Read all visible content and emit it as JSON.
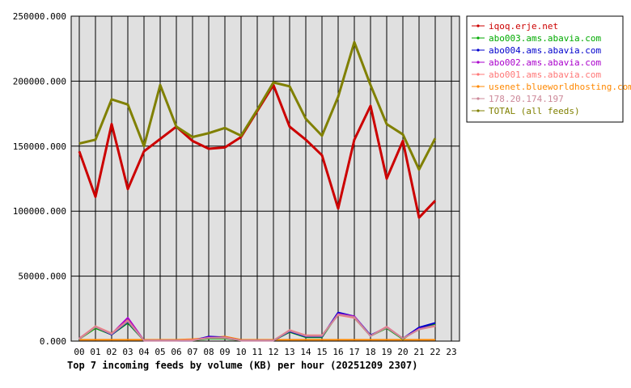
{
  "chart_data": {
    "type": "line",
    "title": "Top 7 incoming feeds by volume (KB) per hour (20251209 2307)",
    "xlabel": "",
    "ylabel": "",
    "ylim": [
      0,
      250000
    ],
    "grid": true,
    "legend_position": "right",
    "y_ticks": [
      "0.000",
      "50000.000",
      "100000.000",
      "150000.000",
      "200000.000",
      "250000.000"
    ],
    "x": [
      "00",
      "01",
      "02",
      "03",
      "04",
      "05",
      "06",
      "07",
      "08",
      "09",
      "10",
      "11",
      "12",
      "13",
      "14",
      "15",
      "16",
      "17",
      "18",
      "19",
      "20",
      "21",
      "22",
      "23"
    ],
    "series": [
      {
        "name": "iqoq.erje.net",
        "color": "#cc0000",
        "values": [
          146000,
          111000,
          167000,
          117000,
          146000,
          null,
          165000,
          154000,
          148000,
          149000,
          157000,
          null,
          197000,
          165000,
          155000,
          143000,
          102000,
          155000,
          181000,
          125000,
          154000,
          95000,
          108000,
          null
        ]
      },
      {
        "name": "abo003.ams.abavia.com",
        "color": "#00aa00",
        "values": [
          1500,
          10000,
          5000,
          14000,
          500,
          500,
          500,
          500,
          2000,
          2000,
          500,
          500,
          500,
          7000,
          3000,
          3000,
          21000,
          18000,
          4000,
          10000,
          1500,
          10000,
          13000,
          null
        ]
      },
      {
        "name": "abo004.ams.abavia.com",
        "color": "#0000cc",
        "values": [
          2000,
          11000,
          5000,
          15000,
          500,
          500,
          500,
          500,
          3500,
          3000,
          500,
          500,
          500,
          7500,
          3500,
          3500,
          22000,
          19000,
          4500,
          10500,
          2000,
          10500,
          14000,
          null
        ]
      },
      {
        "name": "abo002.ams.abavia.com",
        "color": "#aa00cc",
        "values": [
          2000,
          11000,
          5500,
          18000,
          500,
          500,
          500,
          500,
          3000,
          2500,
          500,
          500,
          500,
          8000,
          4000,
          4000,
          21000,
          19000,
          4000,
          11000,
          2000,
          9500,
          12000,
          null
        ]
      },
      {
        "name": "abo001.ams.abavia.com",
        "color": "#ff7777",
        "values": [
          2000,
          11500,
          6000,
          16000,
          500,
          500,
          500,
          1000,
          2500,
          3000,
          500,
          500,
          500,
          8500,
          4500,
          4500,
          20000,
          18000,
          4000,
          11000,
          2000,
          9000,
          11500,
          null
        ]
      },
      {
        "name": "usenet.blueworldhosting.com",
        "color": "#ff8800",
        "values": [
          1000,
          1000,
          1000,
          1000,
          1000,
          1000,
          1000,
          1500,
          2500,
          3500,
          1000,
          1000,
          1000,
          1000,
          1000,
          1000,
          1000,
          1000,
          1000,
          1000,
          1000,
          1000,
          1000,
          null
        ]
      },
      {
        "name": "178.20.174.197",
        "color": "#cc8899",
        "values": [
          1500,
          11000,
          5500,
          15500,
          500,
          500,
          500,
          500,
          2500,
          2500,
          500,
          500,
          500,
          8000,
          4000,
          4000,
          20500,
          18500,
          4000,
          10500,
          2000,
          9000,
          12000,
          null
        ]
      },
      {
        "name": "TOTAL (all feeds)",
        "color": "#808000",
        "values": [
          152000,
          155000,
          186000,
          182000,
          150000,
          197000,
          165000,
          157000,
          160000,
          164000,
          158000,
          178000,
          199000,
          196000,
          171000,
          158000,
          188000,
          230000,
          197000,
          167000,
          159000,
          132000,
          156000,
          null
        ]
      }
    ]
  }
}
